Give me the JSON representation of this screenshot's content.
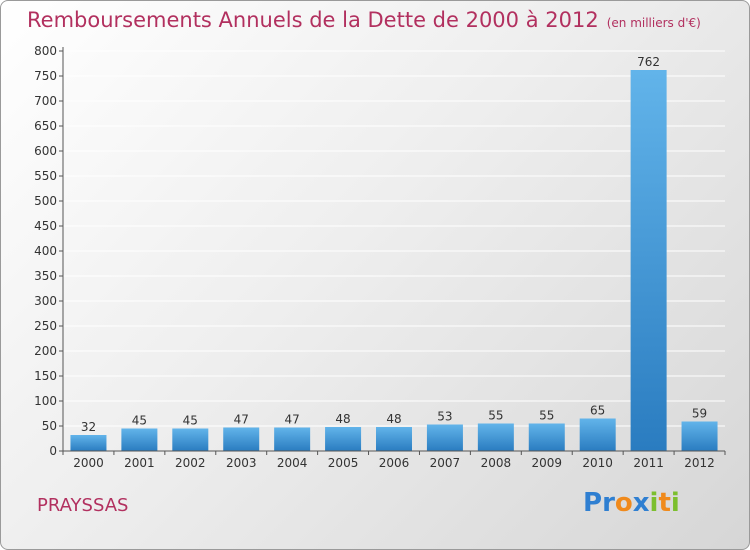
{
  "title": "Remboursements Annuels de la Dette de 2000 à 2012",
  "subtitle": "(en milliers d'€)",
  "commune": "PRAYSSAS",
  "logo": {
    "text": "Proxiti",
    "letters": [
      {
        "ch": "P",
        "color": "#2f7fd1"
      },
      {
        "ch": "r",
        "color": "#2f7fd1"
      },
      {
        "ch": "o",
        "color": "#f08a1c"
      },
      {
        "ch": "x",
        "color": "#2f7fd1"
      },
      {
        "ch": "i",
        "color": "#7cbf2e"
      },
      {
        "ch": "t",
        "color": "#f08a1c"
      },
      {
        "ch": "i",
        "color": "#7cbf2e"
      }
    ]
  },
  "colors": {
    "title": "#b2305f",
    "bar_light": "#62b4ea",
    "bar_dark": "#2a7cc0",
    "grid": "#ffffff",
    "text": "#333333"
  },
  "chart_data": {
    "type": "bar",
    "categories": [
      "2000",
      "2001",
      "2002",
      "2003",
      "2004",
      "2005",
      "2006",
      "2007",
      "2008",
      "2009",
      "2010",
      "2011",
      "2012"
    ],
    "values": [
      32,
      45,
      45,
      47,
      47,
      48,
      48,
      53,
      55,
      55,
      65,
      762,
      59
    ],
    "ylim": [
      0,
      800
    ],
    "yticks": [
      0,
      50,
      100,
      150,
      200,
      250,
      300,
      350,
      400,
      450,
      500,
      550,
      600,
      650,
      700,
      750,
      800
    ],
    "grid": true,
    "data_labels": true
  }
}
